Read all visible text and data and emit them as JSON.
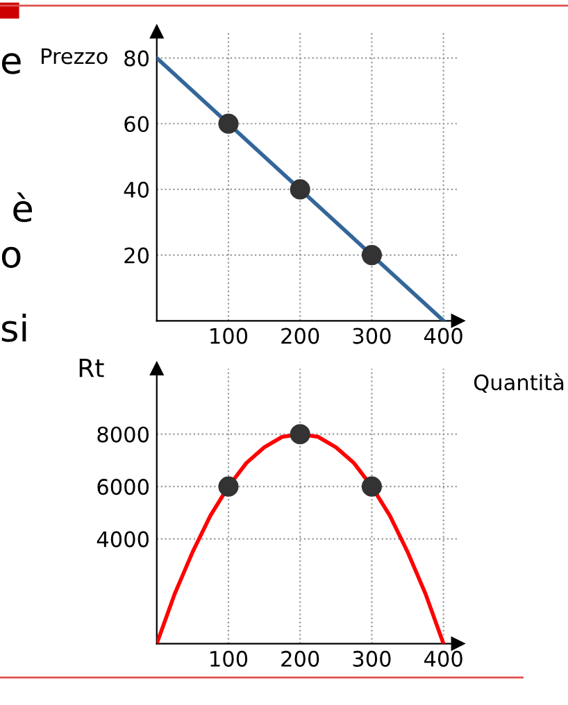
{
  "chart_data": [
    {
      "type": "line",
      "ylabel": "Prezzo",
      "xlabel": "Quantità",
      "series": [
        {
          "color": "#336699",
          "x": [
            0,
            400
          ],
          "values": [
            80,
            0
          ]
        },
        {
          "type": "scatter",
          "color": "#333333",
          "x": [
            100,
            200,
            300
          ],
          "values": [
            60,
            40,
            20
          ]
        }
      ],
      "xlim": [
        0,
        420
      ],
      "ylim": [
        0,
        88
      ],
      "xticks": [
        100,
        200,
        300,
        400
      ],
      "yticks": [
        20,
        40,
        60,
        80
      ],
      "grid": true,
      "annotations": [
        "e",
        "è",
        "o",
        "si"
      ]
    },
    {
      "type": "line",
      "ylabel": "Rt",
      "x": [
        0,
        25,
        50,
        75,
        100,
        125,
        150,
        175,
        200,
        225,
        250,
        275,
        300,
        325,
        350,
        375,
        400
      ],
      "series": [
        {
          "color": "#ff0000",
          "values": [
            0,
            1900,
            3500,
            4900,
            6000,
            6900,
            7500,
            7900,
            8000,
            7900,
            7500,
            6900,
            6000,
            4900,
            3500,
            1900,
            0
          ]
        },
        {
          "type": "scatter",
          "color": "#333333",
          "x": [
            100,
            200,
            300
          ],
          "values": [
            6000,
            8000,
            6000
          ]
        }
      ],
      "xlim": [
        0,
        420
      ],
      "ylim": [
        0,
        10500
      ],
      "xticks": [
        100,
        200,
        300,
        400
      ],
      "yticks": [
        4000,
        6000,
        8000
      ],
      "grid": true
    }
  ]
}
